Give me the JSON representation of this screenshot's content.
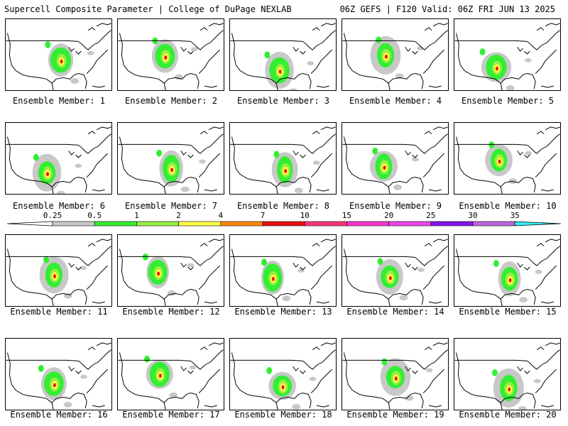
{
  "header": {
    "title": "Supercell Composite Parameter | College of DuPage NEXLAB",
    "run_info": "06Z GEFS | F120 Valid: 06Z FRI JUN 13 2025"
  },
  "legend": {
    "ticks": [
      "0.25",
      "0.5",
      "1",
      "2",
      "4",
      "7",
      "10",
      "15",
      "20",
      "25",
      "30",
      "35"
    ],
    "colors": [
      "#c8c8c8",
      "#33ee33",
      "#99ee44",
      "#ffff44",
      "#ffaa33",
      "#ff8800",
      "#ee1111",
      "#ff3377",
      "#ff33cc",
      "#ee44ee",
      "#8811ee",
      "#bb66dd",
      "#33eeee"
    ],
    "bar_fill_colors": [
      "#c8c8c8",
      "#33ee33",
      "#99ee44",
      "#ffff44",
      "#ff8800",
      "#ee1111",
      "#ff3377",
      "#ff33cc",
      "#ee44ee",
      "#8811ee",
      "#bb66dd"
    ]
  },
  "members": [
    {
      "label": "Ensemble Member: 1"
    },
    {
      "label": "Ensemble Member: 2"
    },
    {
      "label": "Ensemble Member: 3"
    },
    {
      "label": "Ensemble Member: 4"
    },
    {
      "label": "Ensemble Member: 5"
    },
    {
      "label": "Ensemble Member: 6"
    },
    {
      "label": "Ensemble Member: 7"
    },
    {
      "label": "Ensemble Member: 8"
    },
    {
      "label": "Ensemble Member: 9"
    },
    {
      "label": "Ensemble Member: 10"
    },
    {
      "label": "Ensemble Member: 11"
    },
    {
      "label": "Ensemble Member: 12"
    },
    {
      "label": "Ensemble Member: 13"
    },
    {
      "label": "Ensemble Member: 14"
    },
    {
      "label": "Ensemble Member: 15"
    },
    {
      "label": "Ensemble Member: 16"
    },
    {
      "label": "Ensemble Member: 17"
    },
    {
      "label": "Ensemble Member: 18"
    },
    {
      "label": "Ensemble Member: 19"
    },
    {
      "label": "Ensemble Member: 20"
    }
  ]
}
